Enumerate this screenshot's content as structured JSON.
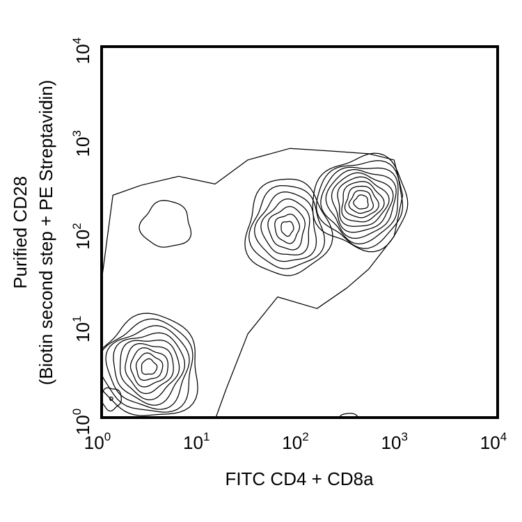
{
  "chart_data": {
    "type": "contour",
    "xlabel": "FITC CD4 + CD8a",
    "ylabel_line1": "Purified CD28",
    "ylabel_line2": "(Biotin second step + PE Streptavidin)",
    "xscale": "log",
    "yscale": "log",
    "xlim": [
      1,
      10000
    ],
    "ylim": [
      1,
      10000
    ],
    "grid": false,
    "x_ticks": [
      {
        "value": 1,
        "base": "10",
        "exp": "0"
      },
      {
        "value": 10,
        "base": "10",
        "exp": "1"
      },
      {
        "value": 100,
        "base": "10",
        "exp": "2"
      },
      {
        "value": 1000,
        "base": "10",
        "exp": "3"
      },
      {
        "value": 10000,
        "base": "10",
        "exp": "4"
      }
    ],
    "y_ticks": [
      {
        "value": 1,
        "base": "10",
        "exp": "0"
      },
      {
        "value": 10,
        "base": "10",
        "exp": "1"
      },
      {
        "value": 100,
        "base": "10",
        "exp": "2"
      },
      {
        "value": 1000,
        "base": "10",
        "exp": "3"
      },
      {
        "value": 10000,
        "base": "10",
        "exp": "4"
      }
    ],
    "populations": [
      {
        "center_x": 3.0,
        "center_y": 3.5,
        "rx_decades": 0.52,
        "ry_decades": 0.55,
        "levels": 9,
        "rotation_deg": 0
      },
      {
        "center_x": 1.25,
        "center_y": 1.6,
        "rx_decades": 0.1,
        "ry_decades": 0.12,
        "levels": 2,
        "rotation_deg": 0
      },
      {
        "center_x": 75,
        "center_y": 110,
        "rx_decades": 0.42,
        "ry_decades": 0.52,
        "levels": 7,
        "rotation_deg": 0
      },
      {
        "center_x": 420,
        "center_y": 210,
        "rx_decades": 0.48,
        "ry_decades": 0.5,
        "levels": 10,
        "rotation_deg": -20
      },
      {
        "center_x": 4.5,
        "center_y": 120,
        "rx_decades": 0.25,
        "ry_decades": 0.25,
        "levels": 1,
        "rotation_deg": 0
      },
      {
        "center_x": 320,
        "center_y": 0.92,
        "rx_decades": 0.12,
        "ry_decades": 0.08,
        "levels": 1,
        "rotation_deg": 0
      }
    ]
  }
}
